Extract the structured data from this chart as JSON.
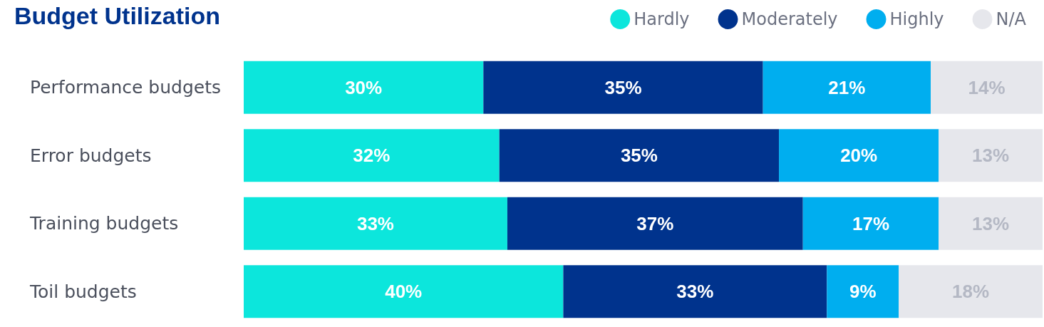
{
  "chart_data": {
    "type": "bar",
    "title": "Budget Utilization",
    "orientation": "horizontal",
    "stacked": true,
    "legend": "top right",
    "tick_labels": "y",
    "categories": [
      "Performance budgets",
      "Error budgets",
      "Training budgets",
      "Toil budgets"
    ],
    "series": [
      {
        "name": "Hardly",
        "color": "#0ce6dc",
        "values": [
          30,
          32,
          33,
          40
        ],
        "value_labels": [
          "30%",
          "32%",
          "33%",
          "40%"
        ]
      },
      {
        "name": "Moderately",
        "color": "#00338d",
        "values": [
          35,
          35,
          37,
          33
        ],
        "value_labels": [
          "35%",
          "35%",
          "37%",
          "33%"
        ]
      },
      {
        "name": "Highly",
        "color": "#00aeef",
        "values": [
          21,
          20,
          17,
          9
        ],
        "value_labels": [
          "21%",
          "20%",
          "17%",
          "9%"
        ]
      },
      {
        "name": "N/A",
        "color": "#e6e7ec",
        "values": [
          14,
          13,
          13,
          18
        ],
        "value_labels": [
          "14%",
          "13%",
          "13%",
          "18%"
        ]
      }
    ]
  }
}
